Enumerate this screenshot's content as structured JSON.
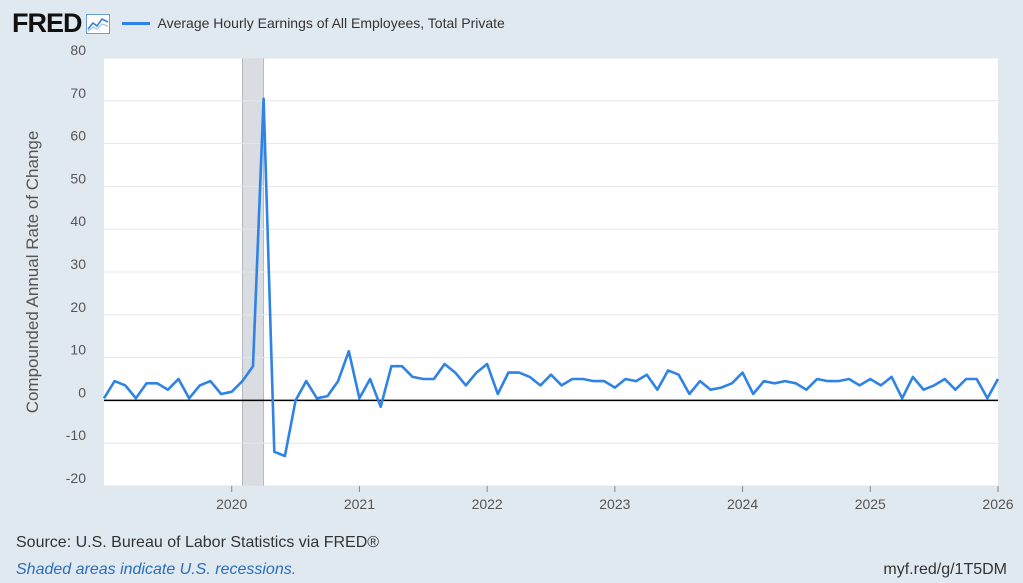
{
  "header": {
    "logo": "FRED",
    "logo_icon": "line-graph-icon",
    "series_label": "Average Hourly Earnings of All Employees, Total Private"
  },
  "footer": {
    "source": "Source: U.S. Bureau of Labor Statistics via FRED®",
    "recession_note": "Shaded areas indicate U.S. recessions.",
    "short_url": "myf.red/g/1T5DM"
  },
  "colors": {
    "series": "#2f83e4",
    "recession": "#d9dde1",
    "background": "#e1e9f0",
    "plot": "#ffffff",
    "note": "#2a6ebb"
  },
  "chart_data": {
    "type": "line",
    "ylabel": "Compounded Annual Rate of Change",
    "ylim": [
      -20,
      80
    ],
    "yticks": [
      80,
      70,
      60,
      50,
      40,
      30,
      20,
      10,
      0,
      -10,
      -20
    ],
    "xticks": [
      "2020",
      "2021",
      "2022",
      "2023",
      "2024",
      "2025",
      "2026"
    ],
    "xlim": [
      "2019-01",
      "2026-01"
    ],
    "zero_line": true,
    "grid": "horizontal",
    "recessions": [
      {
        "start": "2020-02",
        "end": "2020-04"
      }
    ],
    "series": [
      {
        "name": "Average Hourly Earnings of All Employees, Total Private",
        "x": [
          "2019-01",
          "2019-02",
          "2019-03",
          "2019-04",
          "2019-05",
          "2019-06",
          "2019-07",
          "2019-08",
          "2019-09",
          "2019-10",
          "2019-11",
          "2019-12",
          "2020-01",
          "2020-02",
          "2020-03",
          "2020-04",
          "2020-05",
          "2020-06",
          "2020-07",
          "2020-08",
          "2020-09",
          "2020-10",
          "2020-11",
          "2020-12",
          "2021-01",
          "2021-02",
          "2021-03",
          "2021-04",
          "2021-05",
          "2021-06",
          "2021-07",
          "2021-08",
          "2021-09",
          "2021-10",
          "2021-11",
          "2021-12",
          "2022-01",
          "2022-02",
          "2022-03",
          "2022-04",
          "2022-05",
          "2022-06",
          "2022-07",
          "2022-08",
          "2022-09",
          "2022-10",
          "2022-11",
          "2022-12",
          "2023-01",
          "2023-02",
          "2023-03",
          "2023-04",
          "2023-05",
          "2023-06",
          "2023-07",
          "2023-08",
          "2023-09",
          "2023-10",
          "2023-11",
          "2023-12",
          "2024-01",
          "2024-02",
          "2024-03",
          "2024-04",
          "2024-05",
          "2024-06",
          "2024-07",
          "2024-08",
          "2024-09",
          "2024-10",
          "2024-11",
          "2024-12",
          "2025-01",
          "2025-02",
          "2025-03",
          "2025-04",
          "2025-05",
          "2025-06",
          "2025-07",
          "2025-08",
          "2025-09",
          "2025-10",
          "2025-11",
          "2025-12",
          "2026-01"
        ],
        "values": [
          0.5,
          4.5,
          3.5,
          0.5,
          4.0,
          4.0,
          2.5,
          5.0,
          0.5,
          3.5,
          4.5,
          1.5,
          2.0,
          4.5,
          8.0,
          70.5,
          -12.0,
          -13.0,
          0.0,
          4.5,
          0.5,
          1.0,
          4.5,
          11.5,
          0.5,
          5.0,
          -1.5,
          8.0,
          8.0,
          5.5,
          5.0,
          5.0,
          8.5,
          6.5,
          3.5,
          6.5,
          8.5,
          1.5,
          6.5,
          6.5,
          5.5,
          3.5,
          6.0,
          3.5,
          5.0,
          5.0,
          4.5,
          4.5,
          3.0,
          5.0,
          4.5,
          6.0,
          2.5,
          7.0,
          6.0,
          1.5,
          4.5,
          2.5,
          3.0,
          4.0,
          6.5,
          1.5,
          4.5,
          4.0,
          4.5,
          4.0,
          2.5,
          5.0,
          4.5,
          4.5,
          5.0,
          3.5,
          5.0,
          3.5,
          5.5,
          0.5,
          5.5,
          2.5,
          3.5,
          5.0,
          2.5,
          5.0,
          5.0,
          0.5,
          5.0
        ]
      }
    ]
  }
}
